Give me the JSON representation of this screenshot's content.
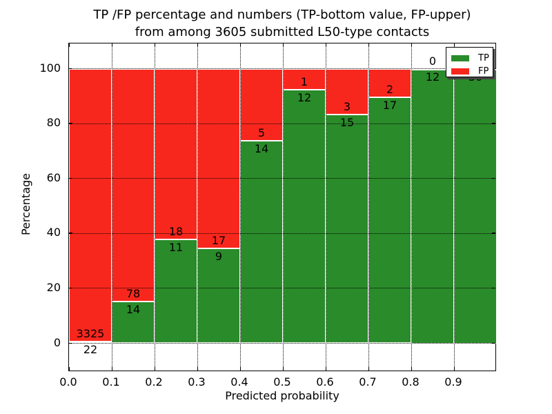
{
  "title": {
    "line1": "TP /FP percentage and numbers (TP-bottom value, FP-upper)",
    "line2": "from among 3605 submitted L50-type contacts"
  },
  "axes": {
    "xlabel": "Predicted probability",
    "ylabel": "Percentage",
    "xtick_labels": [
      "0.0",
      "0.1",
      "0.2",
      "0.3",
      "0.4",
      "0.5",
      "0.6",
      "0.7",
      "0.8",
      "0.9"
    ],
    "ytick_labels": [
      "0",
      "20",
      "40",
      "60",
      "80",
      "100"
    ]
  },
  "legend": {
    "entries": [
      {
        "label": "TP",
        "color": "#2a8b2a"
      },
      {
        "label": "FP",
        "color": "#f8271d"
      }
    ]
  },
  "chart_data": {
    "type": "bar",
    "stacked": true,
    "normalized_to_percent": true,
    "title": "TP /FP percentage and numbers (TP-bottom value, FP-upper) from among 3605 submitted L50-type contacts",
    "xlabel": "Predicted probability",
    "ylabel": "Percentage",
    "total_contacts": 3605,
    "bucket_width": 0.1,
    "categories": [
      "0.0-0.1",
      "0.1-0.2",
      "0.2-0.3",
      "0.3-0.4",
      "0.4-0.5",
      "0.5-0.6",
      "0.6-0.7",
      "0.7-0.8",
      "0.8-0.9",
      "0.9-1.0"
    ],
    "series": [
      {
        "name": "TP",
        "color": "#2a8b2a",
        "counts": [
          22,
          14,
          11,
          9,
          14,
          12,
          15,
          17,
          12,
          30
        ]
      },
      {
        "name": "FP",
        "color": "#f8271d",
        "counts": [
          3325,
          78,
          18,
          17,
          5,
          1,
          3,
          2,
          0,
          0
        ]
      }
    ],
    "tp_percent_of_bucket": [
      0.66,
      15.22,
      37.93,
      34.62,
      73.68,
      92.31,
      83.33,
      89.47,
      100.0,
      100.0
    ],
    "xlim": [
      0.0,
      1.0
    ],
    "ylim": [
      -10,
      110
    ],
    "grid": "dotted, drawn over bars",
    "legend_position": "upper right",
    "note_last_bucket_fp_label_hidden_behind_legend": "0"
  }
}
